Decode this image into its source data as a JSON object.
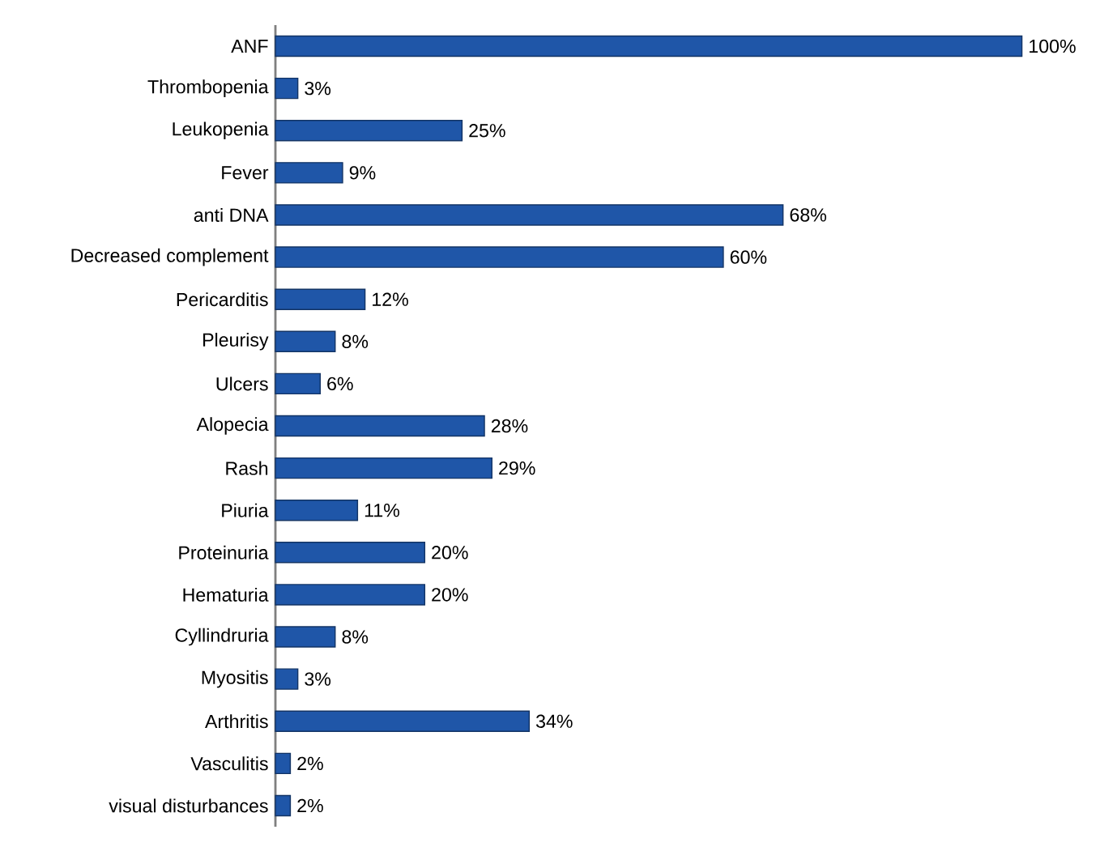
{
  "chart_data": {
    "type": "bar",
    "orientation": "horizontal",
    "color": "#1f56a8",
    "categories": [
      "ANF",
      "Thrombopenia",
      "Leukopenia",
      "Fever",
      "anti DNA",
      "Decreased complement",
      "Pericarditis",
      "Pleurisy",
      "Ulcers",
      "Alopecia",
      "Rash",
      "Piuria",
      "Proteinuria",
      "Hematuria",
      "Cyllindruria",
      "Myositis",
      "Arthritis",
      "Vasculitis",
      "visual disturbances"
    ],
    "values": [
      100,
      3,
      25,
      9,
      68,
      60,
      12,
      8,
      6,
      28,
      29,
      11,
      20,
      20,
      8,
      3,
      34,
      2,
      2
    ],
    "value_labels": [
      "100%",
      "3%",
      "25%",
      "9%",
      "68%",
      "60%",
      "12%",
      "8%",
      "6%",
      "28%",
      "29%",
      "11%",
      "20%",
      "20%",
      "8%",
      "3%",
      "34%",
      "2%",
      "2%"
    ],
    "tick_labels": "y"
  }
}
